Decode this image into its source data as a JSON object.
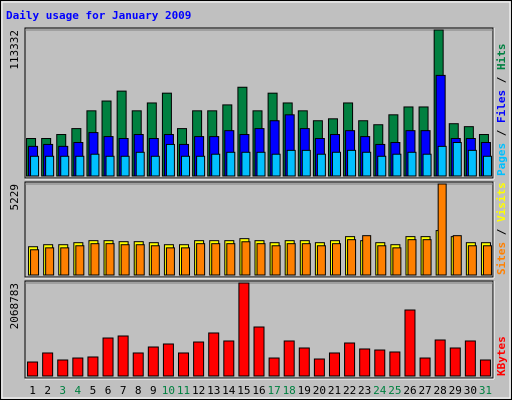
{
  "title": "Daily usage for January 2009",
  "chart_data": [
    {
      "type": "bar",
      "ylim": [
        0,
        113332
      ],
      "yticks": [
        113332
      ],
      "series": [
        {
          "name": "Hits",
          "color": "#008040",
          "values": [
            29100,
            29100,
            32200,
            36800,
            50600,
            58200,
            65900,
            50600,
            56700,
            64300,
            36800,
            50600,
            50600,
            55200,
            68900,
            50600,
            64300,
            56700,
            50600,
            42900,
            44400,
            56700,
            42900,
            39800,
            47500,
            53600,
            53600,
            113332,
            40600,
            38300,
            32200
          ]
        },
        {
          "name": "Files",
          "color": "#0000ff",
          "values": [
            23000,
            24500,
            23000,
            26000,
            33700,
            30600,
            29100,
            32200,
            29100,
            32200,
            24500,
            30600,
            30600,
            35200,
            32200,
            36800,
            42900,
            47500,
            36800,
            29100,
            32200,
            35200,
            30600,
            24500,
            26000,
            35200,
            35200,
            78100,
            29100,
            29100,
            26000
          ]
        },
        {
          "name": "Pages",
          "color": "#00c0ff",
          "values": [
            15300,
            15300,
            15300,
            15300,
            16900,
            15300,
            15300,
            18400,
            15300,
            24500,
            15300,
            15300,
            16900,
            18400,
            18400,
            18400,
            16900,
            19900,
            19900,
            16900,
            18400,
            19900,
            18400,
            15300,
            16900,
            18400,
            16900,
            23000,
            26000,
            19900,
            15300
          ]
        }
      ]
    },
    {
      "type": "bar",
      "ylim": [
        0,
        5229
      ],
      "yticks": [
        5229
      ],
      "series": [
        {
          "name": "Visits",
          "color": "#ffff00",
          "values": [
            1624,
            1740,
            1740,
            1856,
            1972,
            1972,
            1914,
            1914,
            1856,
            1740,
            1740,
            1972,
            1972,
            1972,
            2088,
            1972,
            1856,
            1972,
            1972,
            1856,
            1972,
            2204,
            1972,
            1856,
            1740,
            2204,
            2204,
            2552,
            2204,
            1856,
            1856
          ]
        },
        {
          "name": "Sites",
          "color": "#ff8000",
          "values": [
            1450,
            1560,
            1560,
            1680,
            1800,
            1800,
            1740,
            1740,
            1680,
            1560,
            1560,
            1800,
            1800,
            1800,
            1910,
            1800,
            1680,
            1800,
            1800,
            1680,
            1800,
            2030,
            2260,
            1680,
            1560,
            2030,
            2030,
            5229,
            2260,
            1680,
            1680
          ]
        }
      ]
    },
    {
      "type": "bar",
      "ylim": [
        0,
        2068783
      ],
      "yticks": [
        2068783
      ],
      "categories": [
        "1",
        "2",
        "3",
        "4",
        "5",
        "6",
        "7",
        "8",
        "9",
        "10",
        "11",
        "12",
        "13",
        "14",
        "15",
        "16",
        "17",
        "18",
        "19",
        "20",
        "21",
        "22",
        "23",
        "24",
        "25",
        "26",
        "27",
        "28",
        "29",
        "30",
        "31"
      ],
      "category_colors": [
        "#000000",
        "#000000",
        "#008040",
        "#008040",
        "#000000",
        "#000000",
        "#000000",
        "#000000",
        "#000000",
        "#008040",
        "#008040",
        "#000000",
        "#000000",
        "#000000",
        "#000000",
        "#000000",
        "#008040",
        "#008040",
        "#000000",
        "#000000",
        "#000000",
        "#000000",
        "#000000",
        "#008040",
        "#008040",
        "#000000",
        "#000000",
        "#000000",
        "#000000",
        "#000000",
        "#008040"
      ],
      "series": [
        {
          "name": "KBytes",
          "color": "#ff0000",
          "values": [
            311000,
            512000,
            356000,
            400000,
            423000,
            845000,
            890000,
            512000,
            645000,
            712000,
            512000,
            756000,
            957000,
            779000,
            2068783,
            1090000,
            400000,
            779000,
            623000,
            378000,
            512000,
            734000,
            601000,
            578000,
            534000,
            1468000,
            400000,
            801000,
            623000,
            779000,
            356000
          ]
        }
      ]
    }
  ]
}
